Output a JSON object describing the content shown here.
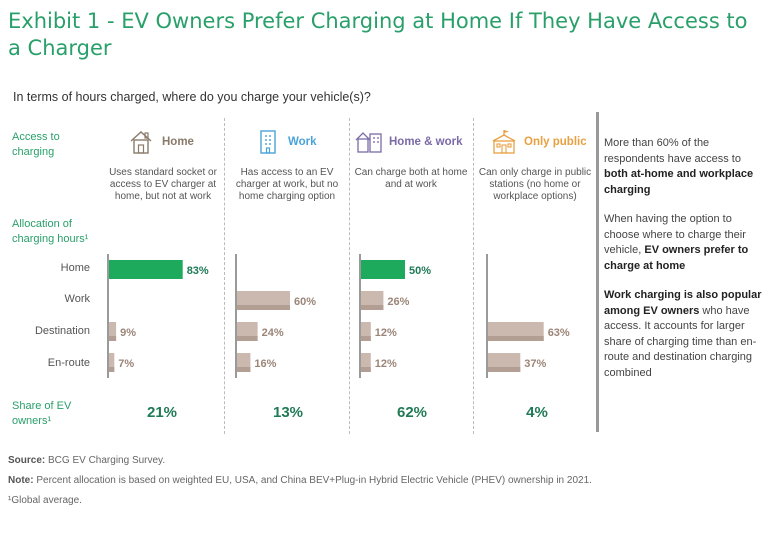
{
  "title": "Exhibit 1 - EV Owners Prefer Charging at Home If They Have Access to a Charger",
  "subtitle": "In terms of hours charged, where do you charge your vehicle(s)?",
  "labels": {
    "access": "Access to charging",
    "allocation": "Allocation of charging hours¹",
    "share": "Share of EV owners¹"
  },
  "columns": [
    {
      "name": "Home",
      "description": "Uses standard socket or access to EV charger at home, but not at work",
      "share": "21%",
      "color": "#8a7a6a",
      "icon": "house-icon"
    },
    {
      "name": "Work",
      "description": "Has access to an EV charger at work, but no home charging option",
      "share": "13%",
      "color": "#4aa3d8",
      "icon": "office-building-icon"
    },
    {
      "name": "Home & work",
      "description": "Can charge both at home and at work",
      "share": "62%",
      "color": "#7b6aa8",
      "icon": "house-and-office-icon"
    },
    {
      "name": "Only public",
      "description": "Can only charge in public stations (no home or workplace options)",
      "share": "4%",
      "color": "#e8a040",
      "icon": "public-building-icon"
    }
  ],
  "chart_data": {
    "type": "bar",
    "orientation": "horizontal",
    "categories": [
      "Home",
      "Work",
      "Destination",
      "En-route"
    ],
    "series": [
      {
        "name": "Home",
        "values": [
          83,
          null,
          9,
          7
        ],
        "labels": [
          "83%",
          "",
          "9%",
          "7%"
        ]
      },
      {
        "name": "Work",
        "values": [
          null,
          60,
          24,
          16
        ],
        "labels": [
          "",
          "60%",
          "24%",
          "16%"
        ]
      },
      {
        "name": "Home & work",
        "values": [
          50,
          26,
          12,
          12
        ],
        "labels": [
          "50%",
          "26%",
          "12%",
          "12%"
        ]
      },
      {
        "name": "Only public",
        "values": [
          null,
          null,
          63,
          37
        ],
        "labels": [
          "",
          "",
          "63%",
          "37%"
        ]
      }
    ],
    "highlight_category": "Home",
    "colors": {
      "highlight": "#1daa5c",
      "default": "#cbb8ae",
      "default_dark": "#b39e94",
      "label": "#9b8578",
      "highlight_label": "#1f7a55"
    },
    "unit": "%"
  },
  "sidebar": {
    "p1_a": "More than 60% of the respondents have access to ",
    "p1_b": "both at-home and workplace charging",
    "p2_a": "When having the option to choose where to charge their vehicle, ",
    "p2_b": "EV owners prefer to charge at home",
    "p3_a": "Work charging is also popular among EV owners",
    "p3_b": " who have access. It accounts for larger share of charging time than en-route and destination charging combined"
  },
  "footnotes": {
    "source_label": "Source:",
    "source": " BCG EV Charging Survey.",
    "note_label": "Note:",
    "note": " Percent allocation is based on weighted EU, USA, and China BEV+Plug-in Hybrid Electric Vehicle (PHEV) ownership in 2021.",
    "global": "¹Global average."
  }
}
